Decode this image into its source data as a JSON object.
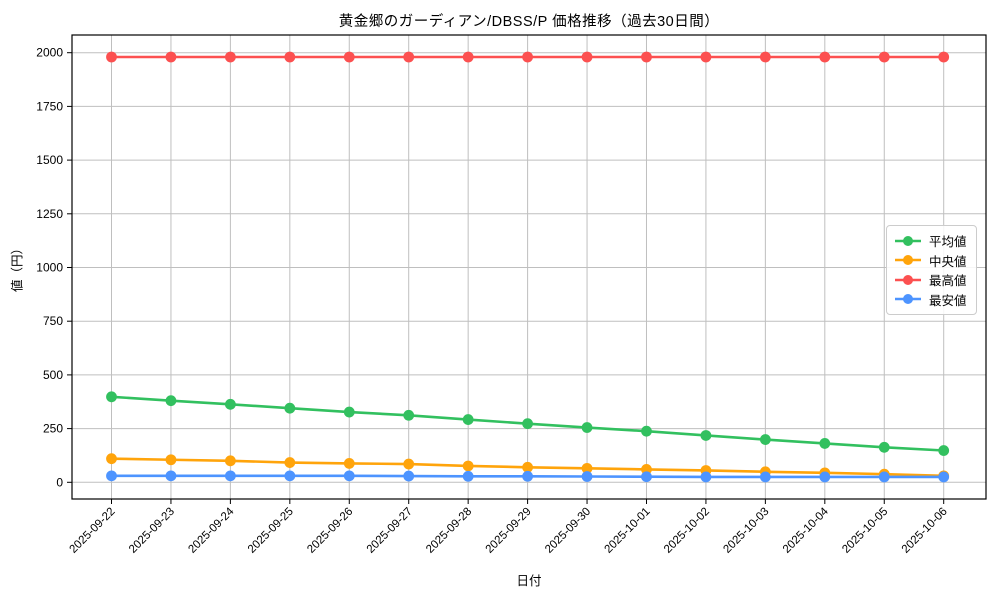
{
  "chart_data": {
    "type": "line",
    "title": "黄金郷のガーディアン/DBSS/P 価格推移（過去30日間）",
    "xlabel": "日付",
    "ylabel": "値（円）",
    "categories": [
      "2025-09-22",
      "2025-09-23",
      "2025-09-24",
      "2025-09-25",
      "2025-09-26",
      "2025-09-27",
      "2025-09-28",
      "2025-09-29",
      "2025-09-30",
      "2025-10-01",
      "2025-10-02",
      "2025-10-03",
      "2025-10-04",
      "2025-10-05",
      "2025-10-06"
    ],
    "series": [
      {
        "name": "平均値",
        "color": "#32c05f",
        "values": [
          398,
          380,
          363,
          345,
          327,
          312,
          292,
          273,
          255,
          238,
          218,
          199,
          181,
          163,
          148
        ]
      },
      {
        "name": "中央値",
        "color": "#ffa40b",
        "values": [
          110,
          105,
          100,
          92,
          88,
          85,
          76,
          70,
          65,
          60,
          55,
          49,
          44,
          38,
          30
        ]
      },
      {
        "name": "最高値",
        "color": "#fc5050",
        "values": [
          1980,
          1980,
          1980,
          1980,
          1980,
          1980,
          1980,
          1980,
          1980,
          1980,
          1980,
          1980,
          1980,
          1980,
          1980
        ]
      },
      {
        "name": "最安値",
        "color": "#4d94ff",
        "values": [
          30,
          30,
          30,
          30,
          30,
          29,
          28,
          28,
          27,
          26,
          25,
          25,
          25,
          25,
          25
        ]
      }
    ],
    "y_ticks": [
      0,
      250,
      500,
      750,
      1000,
      1250,
      1500,
      1750,
      2000
    ],
    "ylim": [
      -75,
      2070
    ],
    "grid": true,
    "legend_position": "right",
    "colors": {
      "grid": "#bfbfbf",
      "spine": "#000000",
      "tick_text": "#000000",
      "background": "#ffffff"
    }
  }
}
